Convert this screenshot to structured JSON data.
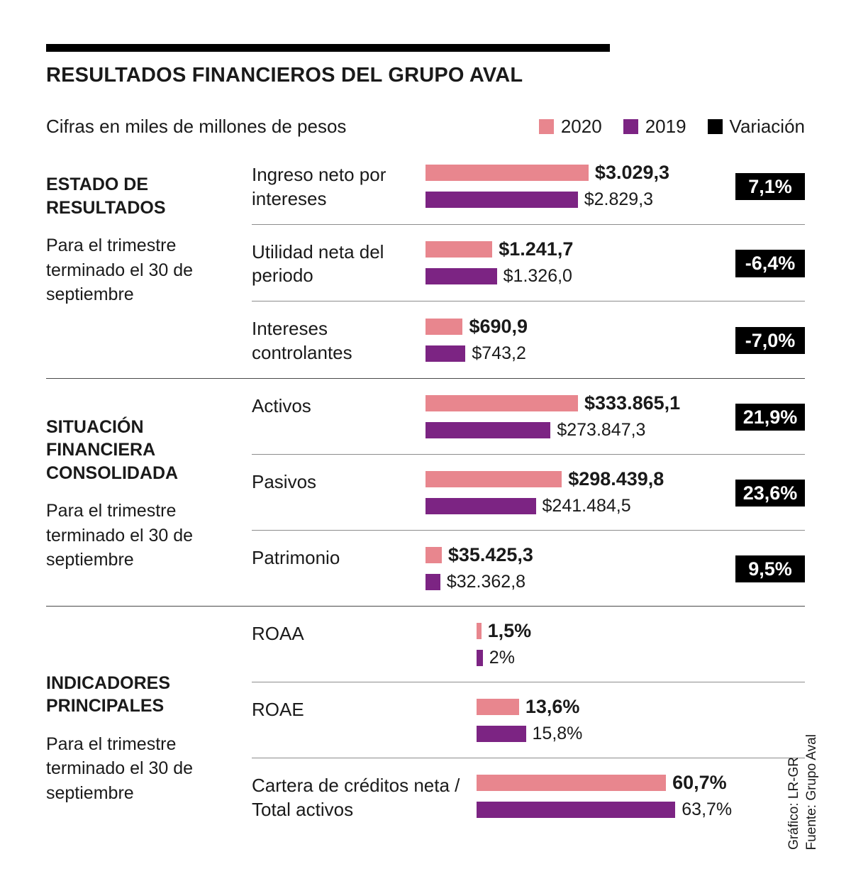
{
  "colors": {
    "bar_2020": "#e8868e",
    "bar_2019": "#7c2483",
    "variation": "#000000"
  },
  "header": {
    "title": "RESULTADOS FINANCIEROS DEL GRUPO AVAL",
    "subtitle": "Cifras en miles de millones de pesos",
    "legend": [
      {
        "label": "2020",
        "color": "#e8868e"
      },
      {
        "label": "2019",
        "color": "#7c2483"
      },
      {
        "label": "Variación",
        "color": "#000000"
      }
    ]
  },
  "footer": {
    "credit": "Gráfico: LR-GR",
    "source": "Fuente: Grupo Aval"
  },
  "chart_data": {
    "type": "bar",
    "orientation": "horizontal",
    "units": "miles de millones de pesos",
    "series_names": [
      "2020",
      "2019",
      "Variación"
    ],
    "sections": [
      {
        "title": "ESTADO DE RESULTADOS",
        "subtitle": "Para el trimestre terminado el 30 de septiembre",
        "rows": [
          {
            "label": "Ingreso neto por intereses",
            "v2020": 3029.3,
            "v2019": 2829.3,
            "label_2020": "$3.029,3",
            "label_2019": "$2.829,3",
            "variation": "7,1%"
          },
          {
            "label": "Utilidad neta del periodo",
            "v2020": 1241.7,
            "v2019": 1326.0,
            "label_2020": "$1.241,7",
            "label_2019": "$1.326,0",
            "variation": "-6,4%"
          },
          {
            "label": "Intereses controlantes",
            "v2020": 690.9,
            "v2019": 743.2,
            "label_2020": "$690,9",
            "label_2019": "$743,2",
            "variation": "-7,0%"
          }
        ]
      },
      {
        "title": "SITUACIÓN FINANCIERA CONSOLIDADA",
        "subtitle": "Para el trimestre terminado el 30 de septiembre",
        "rows": [
          {
            "label": "Activos",
            "v2020": 333865.1,
            "v2019": 273847.3,
            "label_2020": "$333.865,1",
            "label_2019": "$273.847,3",
            "variation": "21,9%"
          },
          {
            "label": "Pasivos",
            "v2020": 298439.8,
            "v2019": 241484.5,
            "label_2020": "$298.439,8",
            "label_2019": "$241.484,5",
            "variation": "23,6%"
          },
          {
            "label": "Patrimonio",
            "v2020": 35425.3,
            "v2019": 32362.8,
            "label_2020": "$35.425,3",
            "label_2019": "$32.362,8",
            "variation": "9,5%"
          }
        ]
      },
      {
        "title": "INDICADORES PRINCIPALES",
        "subtitle": "Para el trimestre terminado el 30 de septiembre",
        "rows": [
          {
            "label": "ROAA",
            "v2020": 1.5,
            "v2019": 2,
            "label_2020": "1,5%",
            "label_2019": "2%",
            "variation": null
          },
          {
            "label": "ROAE",
            "v2020": 13.6,
            "v2019": 15.8,
            "label_2020": "13,6%",
            "label_2019": "15,8%",
            "variation": null
          },
          {
            "label": "Cartera de créditos neta / Total activos",
            "v2020": 60.7,
            "v2019": 63.7,
            "label_2020": "60,7%",
            "label_2019": "63,7%",
            "variation": null
          }
        ]
      }
    ]
  }
}
